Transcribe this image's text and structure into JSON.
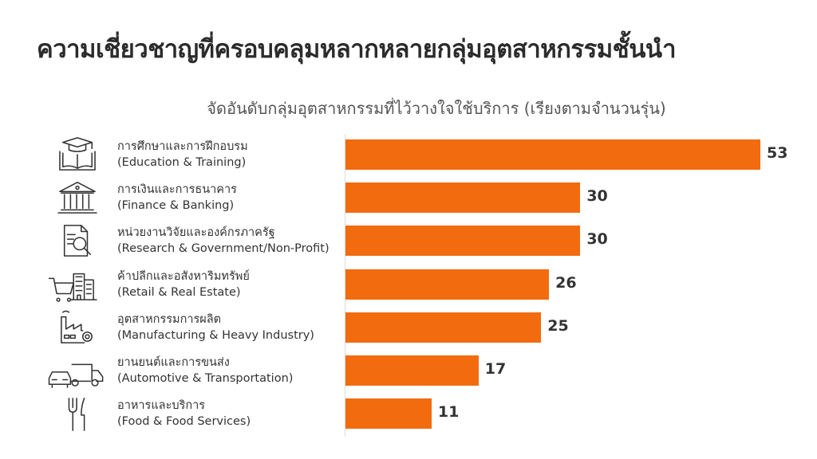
{
  "title": "ความเชี่ยวชาญที่ครอบคลุมหลากหลายกลุ่มอุตสาหกรรมชั้นนำ",
  "colors": {
    "bar": "#F26B0F"
  },
  "chart_data": {
    "type": "bar",
    "orientation": "horizontal",
    "title": "จัดอันดับกลุ่มอุตสาหกรรมที่ไว้วางใจใช้บริการ (เรียงตามจำนวนรุ่น)",
    "categories": [
      {
        "th": "การศึกษาและการฝึกอบรม",
        "en": "(Education & Training)",
        "icon": "graduation-book-icon"
      },
      {
        "th": "การเงินและการธนาคาร",
        "en": "(Finance & Banking)",
        "icon": "bank-icon"
      },
      {
        "th": "หน่วยงานวิจัยและองค์กรภาครัฐ",
        "en": "(Research & Government/Non-Profit)",
        "icon": "document-search-icon"
      },
      {
        "th": "ค้าปลีกและอสังหาริมทรัพย์",
        "en": "(Retail & Real Estate)",
        "icon": "cart-building-icon"
      },
      {
        "th": "อุตสาหกรรมการผลิต",
        "en": "(Manufacturing & Heavy Industry)",
        "icon": "factory-gear-icon"
      },
      {
        "th": "ยานยนต์และการขนส่ง",
        "en": "(Automotive & Transportation)",
        "icon": "car-truck-icon"
      },
      {
        "th": "อาหารและบริการ",
        "en": "(Food & Food Services)",
        "icon": "fork-knife-icon"
      }
    ],
    "values": [
      53,
      30,
      30,
      26,
      25,
      17,
      11
    ],
    "xlim": [
      0,
      53
    ],
    "grid": false,
    "legend": "none"
  }
}
